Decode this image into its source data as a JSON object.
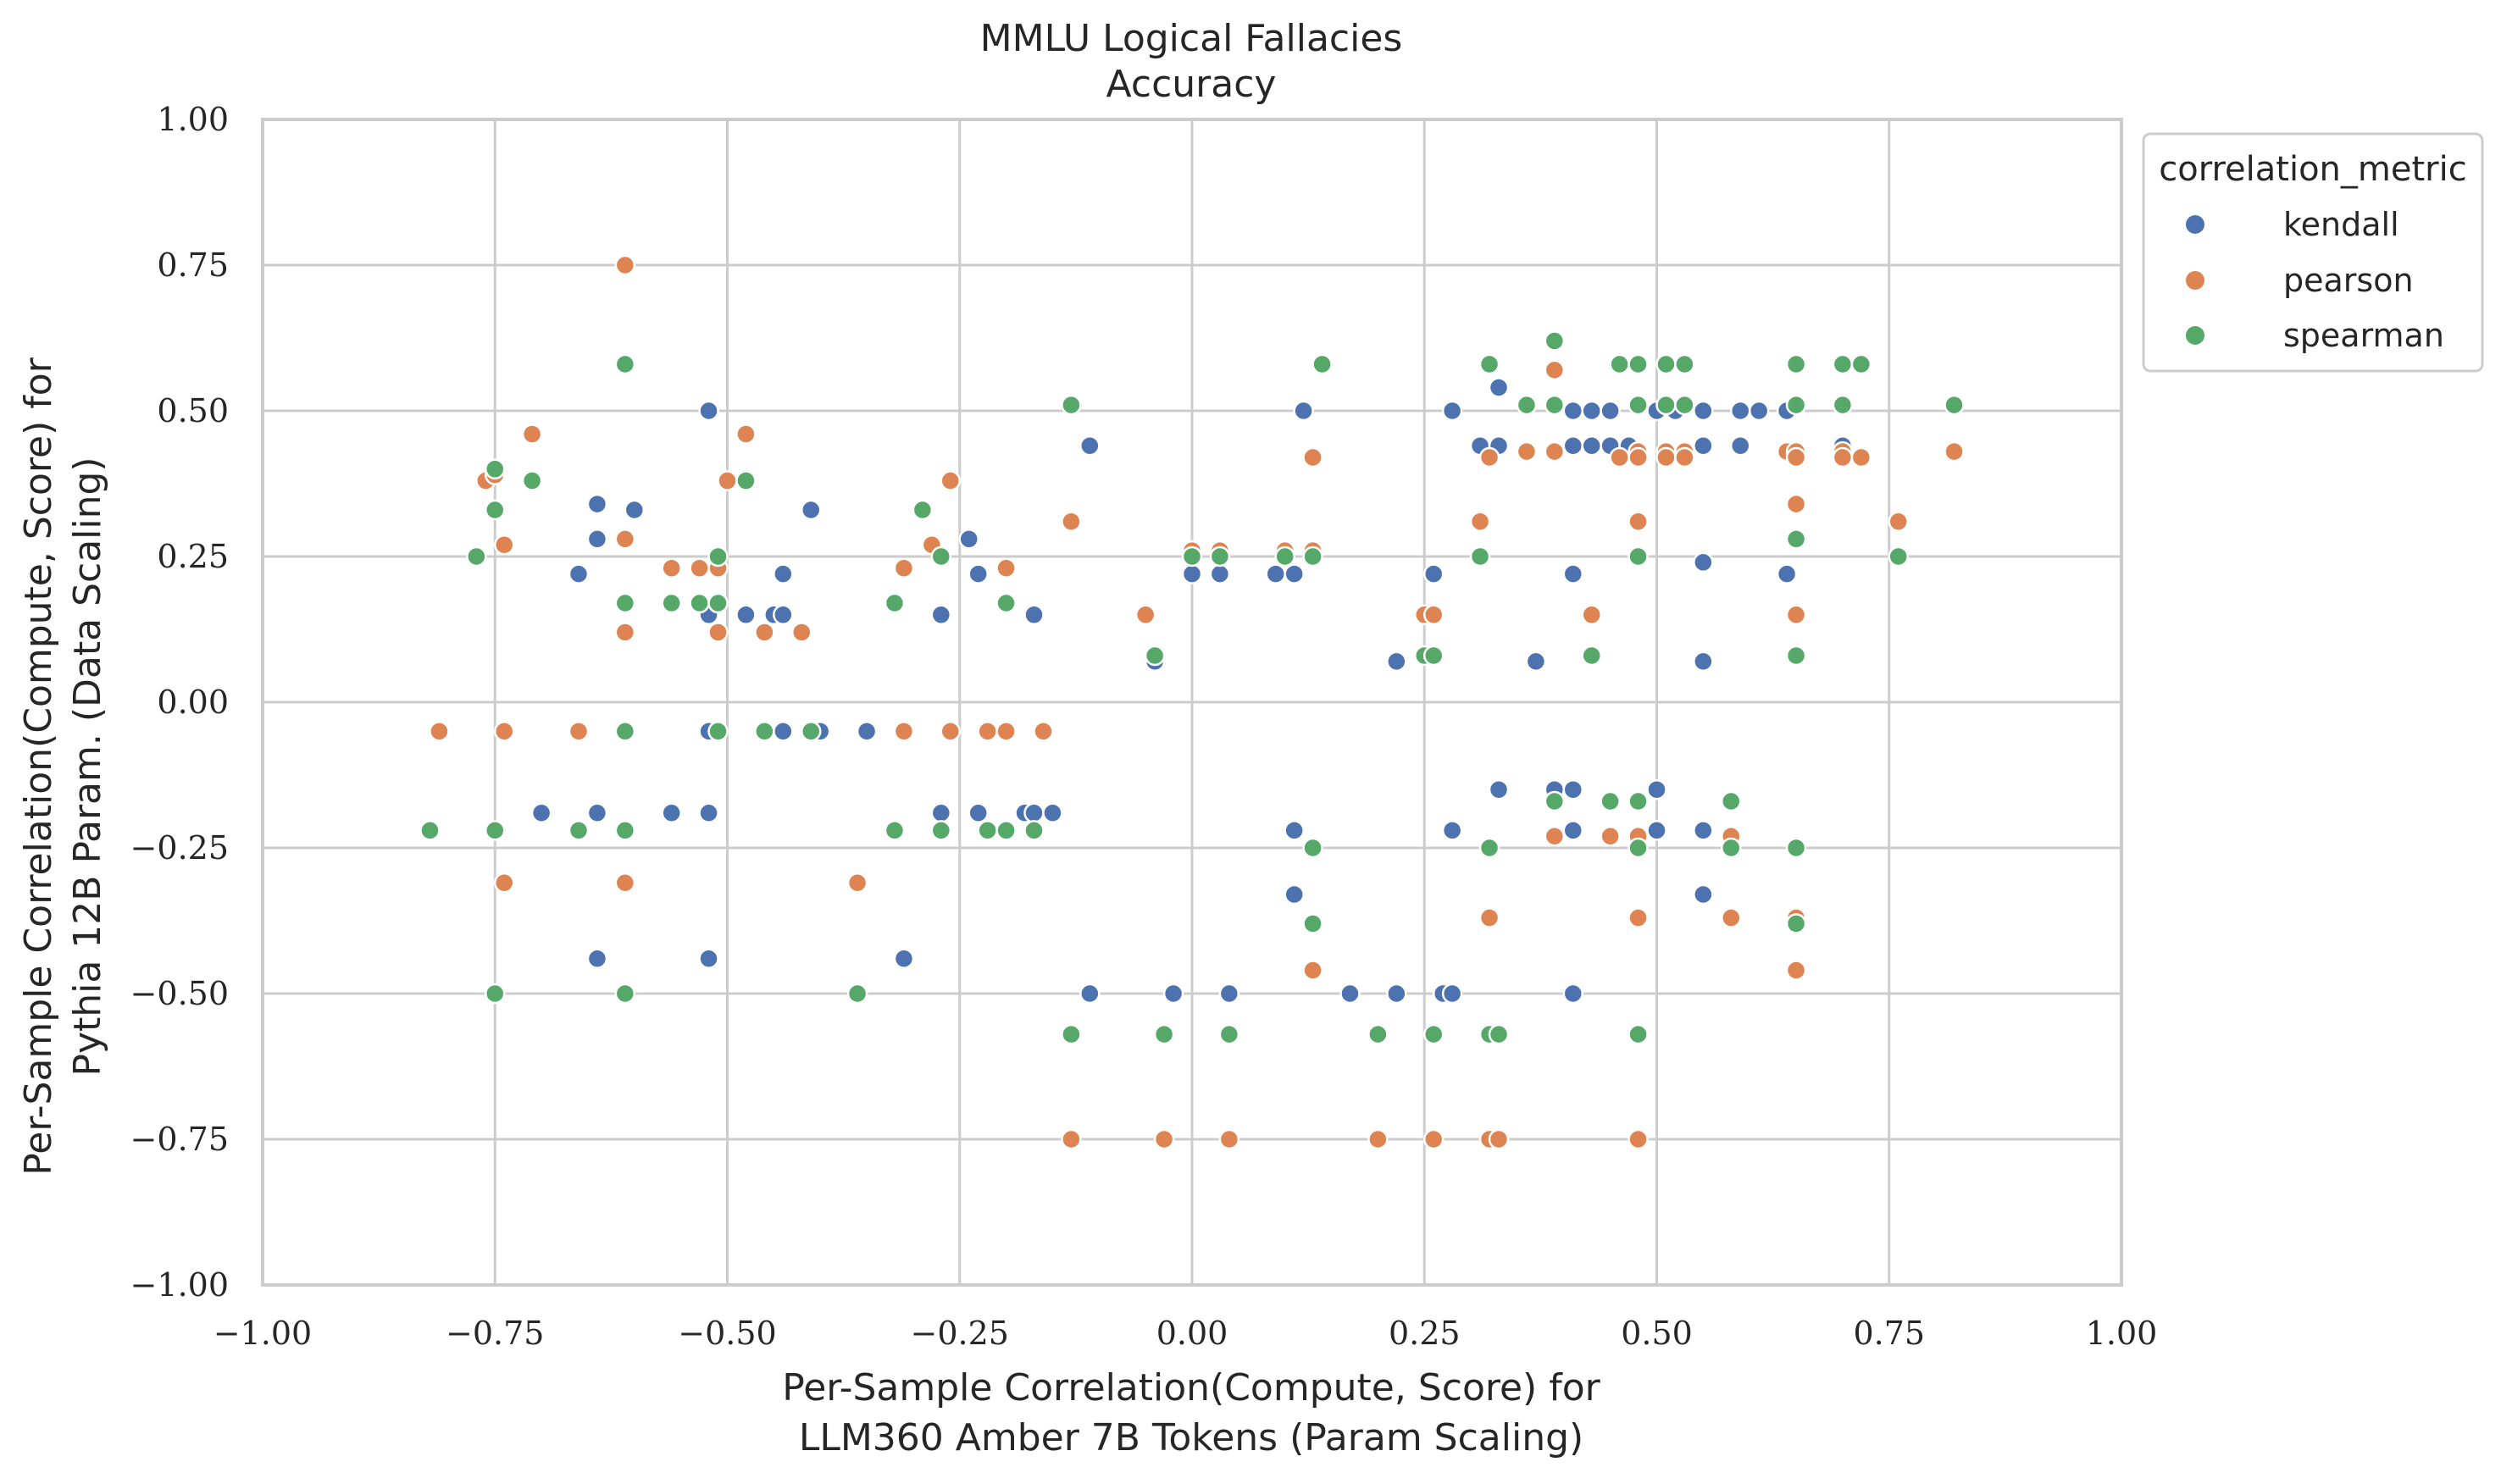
{
  "chart_data": {
    "type": "scatter",
    "title": "MMLU Logical Fallacies",
    "subtitle": "Accuracy",
    "xlabel_lines": [
      "Per-Sample Correlation(Compute, Score) for",
      "LLM360 Amber 7B Tokens (Param Scaling)"
    ],
    "ylabel_lines": [
      "Per-Sample Correlation(Compute, Score) for",
      "Pythia 12B Param. (Data Scaling)"
    ],
    "xlim": [
      -1.0,
      1.0
    ],
    "ylim": [
      -1.0,
      1.0
    ],
    "xticks": [
      -1.0,
      -0.75,
      -0.5,
      -0.25,
      0.0,
      0.25,
      0.5,
      0.75,
      1.0
    ],
    "yticks": [
      -1.0,
      -0.75,
      -0.5,
      -0.25,
      0.0,
      0.25,
      0.5,
      0.75,
      1.0
    ],
    "xtick_labels": [
      "−1.00",
      "−0.75",
      "−0.50",
      "−0.25",
      "0.00",
      "0.25",
      "0.50",
      "0.75",
      "1.00"
    ],
    "ytick_labels": [
      "−1.00",
      "−0.75",
      "−0.50",
      "−0.25",
      "0.00",
      "0.25",
      "0.50",
      "0.75",
      "1.00"
    ],
    "grid": true,
    "legend": {
      "title": "correlation_metric",
      "placement": "outside-top-right"
    },
    "series": [
      {
        "name": "kendall",
        "color": "#4c72b0",
        "points": [
          [
            -0.52,
            0.5
          ],
          [
            -0.64,
            0.34
          ],
          [
            -0.64,
            0.28
          ],
          [
            -0.6,
            0.33
          ],
          [
            -0.66,
            0.22
          ],
          [
            -0.52,
            0.15
          ],
          [
            -0.48,
            0.15
          ],
          [
            -0.45,
            0.15
          ],
          [
            -0.44,
            0.15
          ],
          [
            -0.44,
            0.22
          ],
          [
            -0.41,
            0.33
          ],
          [
            -0.24,
            0.28
          ],
          [
            -0.27,
            0.15
          ],
          [
            -0.23,
            0.22
          ],
          [
            -0.17,
            0.15
          ],
          [
            -0.11,
            0.44
          ],
          [
            -0.04,
            0.07
          ],
          [
            0.0,
            0.22
          ],
          [
            0.03,
            0.22
          ],
          [
            0.09,
            0.22
          ],
          [
            0.11,
            0.22
          ],
          [
            0.12,
            0.5
          ],
          [
            0.22,
            0.07
          ],
          [
            0.26,
            0.22
          ],
          [
            0.28,
            0.5
          ],
          [
            0.31,
            0.44
          ],
          [
            0.33,
            0.44
          ],
          [
            0.33,
            0.54
          ],
          [
            0.37,
            0.07
          ],
          [
            0.41,
            0.5
          ],
          [
            0.41,
            0.44
          ],
          [
            0.41,
            0.22
          ],
          [
            0.43,
            0.5
          ],
          [
            0.43,
            0.44
          ],
          [
            0.45,
            0.5
          ],
          [
            0.45,
            0.44
          ],
          [
            0.47,
            0.44
          ],
          [
            0.5,
            0.5
          ],
          [
            0.52,
            0.5
          ],
          [
            0.55,
            0.5
          ],
          [
            0.55,
            0.44
          ],
          [
            0.55,
            0.24
          ],
          [
            0.55,
            0.07
          ],
          [
            0.59,
            0.5
          ],
          [
            0.59,
            0.44
          ],
          [
            0.61,
            0.5
          ],
          [
            0.64,
            0.5
          ],
          [
            0.64,
            0.22
          ],
          [
            0.7,
            0.44
          ],
          [
            -0.52,
            -0.05
          ],
          [
            -0.44,
            -0.05
          ],
          [
            -0.4,
            -0.05
          ],
          [
            -0.35,
            -0.05
          ],
          [
            -0.7,
            -0.19
          ],
          [
            -0.64,
            -0.19
          ],
          [
            -0.56,
            -0.19
          ],
          [
            -0.52,
            -0.19
          ],
          [
            -0.27,
            -0.19
          ],
          [
            -0.23,
            -0.19
          ],
          [
            -0.18,
            -0.19
          ],
          [
            -0.17,
            -0.19
          ],
          [
            -0.15,
            -0.19
          ],
          [
            -0.64,
            -0.44
          ],
          [
            -0.52,
            -0.44
          ],
          [
            -0.31,
            -0.44
          ],
          [
            -0.11,
            -0.5
          ],
          [
            -0.02,
            -0.5
          ],
          [
            0.04,
            -0.5
          ],
          [
            0.17,
            -0.5
          ],
          [
            0.22,
            -0.5
          ],
          [
            0.27,
            -0.5
          ],
          [
            0.28,
            -0.5
          ],
          [
            0.41,
            -0.5
          ],
          [
            0.11,
            -0.22
          ],
          [
            0.11,
            -0.33
          ],
          [
            0.28,
            -0.22
          ],
          [
            0.33,
            -0.15
          ],
          [
            0.39,
            -0.15
          ],
          [
            0.41,
            -0.15
          ],
          [
            0.41,
            -0.22
          ],
          [
            0.5,
            -0.15
          ],
          [
            0.5,
            -0.22
          ],
          [
            0.55,
            -0.22
          ],
          [
            0.55,
            -0.33
          ]
        ]
      },
      {
        "name": "pearson",
        "color": "#dd8452",
        "points": [
          [
            -0.61,
            0.75
          ],
          [
            -0.76,
            0.38
          ],
          [
            -0.75,
            0.39
          ],
          [
            -0.74,
            0.27
          ],
          [
            -0.71,
            0.46
          ],
          [
            -0.61,
            0.28
          ],
          [
            -0.61,
            0.12
          ],
          [
            -0.56,
            0.23
          ],
          [
            -0.53,
            0.23
          ],
          [
            -0.51,
            0.23
          ],
          [
            -0.51,
            0.12
          ],
          [
            -0.5,
            0.38
          ],
          [
            -0.48,
            0.46
          ],
          [
            -0.46,
            0.12
          ],
          [
            -0.42,
            0.12
          ],
          [
            -0.31,
            0.23
          ],
          [
            -0.28,
            0.27
          ],
          [
            -0.26,
            0.38
          ],
          [
            -0.2,
            0.23
          ],
          [
            -0.13,
            0.31
          ],
          [
            -0.05,
            0.15
          ],
          [
            0.0,
            0.26
          ],
          [
            0.03,
            0.26
          ],
          [
            0.1,
            0.26
          ],
          [
            0.13,
            0.26
          ],
          [
            0.13,
            0.42
          ],
          [
            0.25,
            0.15
          ],
          [
            0.26,
            0.15
          ],
          [
            0.31,
            0.31
          ],
          [
            0.32,
            0.42
          ],
          [
            0.36,
            0.43
          ],
          [
            0.39,
            0.43
          ],
          [
            0.39,
            0.57
          ],
          [
            0.43,
            0.15
          ],
          [
            0.46,
            0.42
          ],
          [
            0.48,
            0.43
          ],
          [
            0.48,
            0.42
          ],
          [
            0.48,
            0.31
          ],
          [
            0.51,
            0.43
          ],
          [
            0.51,
            0.42
          ],
          [
            0.53,
            0.43
          ],
          [
            0.53,
            0.42
          ],
          [
            0.64,
            0.43
          ],
          [
            0.65,
            0.43
          ],
          [
            0.65,
            0.42
          ],
          [
            0.65,
            0.34
          ],
          [
            0.65,
            0.15
          ],
          [
            0.7,
            0.43
          ],
          [
            0.7,
            0.42
          ],
          [
            0.72,
            0.42
          ],
          [
            0.76,
            0.31
          ],
          [
            0.82,
            0.43
          ],
          [
            -0.81,
            -0.05
          ],
          [
            -0.74,
            -0.05
          ],
          [
            -0.66,
            -0.05
          ],
          [
            -0.61,
            -0.05
          ],
          [
            -0.31,
            -0.05
          ],
          [
            -0.26,
            -0.05
          ],
          [
            -0.22,
            -0.05
          ],
          [
            -0.2,
            -0.05
          ],
          [
            -0.16,
            -0.05
          ],
          [
            -0.74,
            -0.31
          ],
          [
            -0.61,
            -0.31
          ],
          [
            -0.36,
            -0.31
          ],
          [
            0.39,
            -0.23
          ],
          [
            0.45,
            -0.23
          ],
          [
            0.48,
            -0.23
          ],
          [
            0.58,
            -0.23
          ],
          [
            0.13,
            -0.46
          ],
          [
            0.32,
            -0.37
          ],
          [
            0.48,
            -0.37
          ],
          [
            0.58,
            -0.37
          ],
          [
            0.65,
            -0.37
          ],
          [
            0.65,
            -0.46
          ],
          [
            -0.13,
            -0.75
          ],
          [
            -0.03,
            -0.75
          ],
          [
            0.04,
            -0.75
          ],
          [
            0.2,
            -0.75
          ],
          [
            0.26,
            -0.75
          ],
          [
            0.32,
            -0.75
          ],
          [
            0.33,
            -0.75
          ],
          [
            0.48,
            -0.75
          ]
        ]
      },
      {
        "name": "spearman",
        "color": "#55a868",
        "points": [
          [
            -0.61,
            0.58
          ],
          [
            -0.77,
            0.25
          ],
          [
            -0.75,
            0.4
          ],
          [
            -0.75,
            0.33
          ],
          [
            -0.71,
            0.38
          ],
          [
            -0.61,
            0.17
          ],
          [
            -0.56,
            0.17
          ],
          [
            -0.53,
            0.17
          ],
          [
            -0.51,
            0.17
          ],
          [
            -0.51,
            0.25
          ],
          [
            -0.48,
            0.38
          ],
          [
            -0.32,
            0.17
          ],
          [
            -0.29,
            0.33
          ],
          [
            -0.27,
            0.25
          ],
          [
            -0.2,
            0.17
          ],
          [
            -0.13,
            0.51
          ],
          [
            -0.04,
            0.08
          ],
          [
            0.0,
            0.25
          ],
          [
            0.03,
            0.25
          ],
          [
            0.1,
            0.25
          ],
          [
            0.13,
            0.25
          ],
          [
            0.14,
            0.58
          ],
          [
            0.25,
            0.08
          ],
          [
            0.26,
            0.08
          ],
          [
            0.31,
            0.25
          ],
          [
            0.32,
            0.58
          ],
          [
            0.36,
            0.51
          ],
          [
            0.39,
            0.51
          ],
          [
            0.39,
            0.62
          ],
          [
            0.43,
            0.08
          ],
          [
            0.46,
            0.58
          ],
          [
            0.48,
            0.58
          ],
          [
            0.48,
            0.51
          ],
          [
            0.48,
            0.25
          ],
          [
            0.51,
            0.58
          ],
          [
            0.51,
            0.51
          ],
          [
            0.53,
            0.58
          ],
          [
            0.53,
            0.51
          ],
          [
            0.65,
            0.58
          ],
          [
            0.65,
            0.51
          ],
          [
            0.65,
            0.28
          ],
          [
            0.65,
            0.08
          ],
          [
            0.7,
            0.58
          ],
          [
            0.7,
            0.51
          ],
          [
            0.72,
            0.58
          ],
          [
            0.76,
            0.25
          ],
          [
            0.82,
            0.51
          ],
          [
            -0.61,
            -0.05
          ],
          [
            -0.51,
            -0.05
          ],
          [
            -0.46,
            -0.05
          ],
          [
            -0.41,
            -0.05
          ],
          [
            -0.82,
            -0.22
          ],
          [
            -0.75,
            -0.22
          ],
          [
            -0.66,
            -0.22
          ],
          [
            -0.61,
            -0.22
          ],
          [
            -0.32,
            -0.22
          ],
          [
            -0.27,
            -0.22
          ],
          [
            -0.22,
            -0.22
          ],
          [
            -0.2,
            -0.22
          ],
          [
            -0.17,
            -0.22
          ],
          [
            -0.75,
            -0.5
          ],
          [
            -0.61,
            -0.5
          ],
          [
            -0.36,
            -0.5
          ],
          [
            0.13,
            -0.25
          ],
          [
            0.13,
            -0.38
          ],
          [
            0.32,
            -0.25
          ],
          [
            0.39,
            -0.17
          ],
          [
            0.45,
            -0.17
          ],
          [
            0.48,
            -0.17
          ],
          [
            0.48,
            -0.25
          ],
          [
            0.58,
            -0.17
          ],
          [
            0.58,
            -0.25
          ],
          [
            0.65,
            -0.25
          ],
          [
            0.65,
            -0.38
          ],
          [
            -0.13,
            -0.57
          ],
          [
            -0.03,
            -0.57
          ],
          [
            0.04,
            -0.57
          ],
          [
            0.2,
            -0.57
          ],
          [
            0.26,
            -0.57
          ],
          [
            0.32,
            -0.57
          ],
          [
            0.33,
            -0.57
          ],
          [
            0.48,
            -0.57
          ]
        ]
      }
    ]
  }
}
